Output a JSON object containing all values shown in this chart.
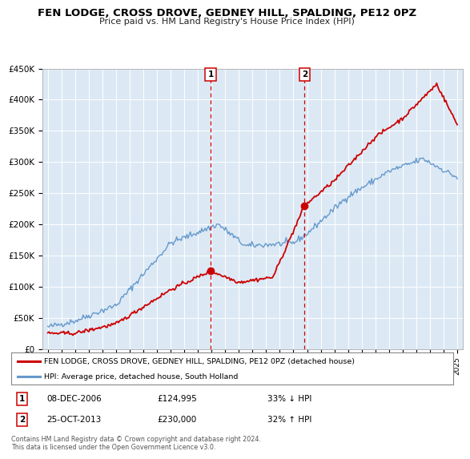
{
  "title": "FEN LODGE, CROSS DROVE, GEDNEY HILL, SPALDING, PE12 0PZ",
  "subtitle": "Price paid vs. HM Land Registry's House Price Index (HPI)",
  "plot_bg_color": "#dce9f5",
  "ylim": [
    0,
    450000
  ],
  "yticks": [
    0,
    50000,
    100000,
    150000,
    200000,
    250000,
    300000,
    350000,
    400000,
    450000
  ],
  "ytick_labels": [
    "£0",
    "£50K",
    "£100K",
    "£150K",
    "£200K",
    "£250K",
    "£300K",
    "£350K",
    "£400K",
    "£450K"
  ],
  "sale1_date_num": 2006.93,
  "sale1_price": 124995,
  "sale2_date_num": 2013.82,
  "sale2_price": 230000,
  "legend_line1": "FEN LODGE, CROSS DROVE, GEDNEY HILL, SPALDING, PE12 0PZ (detached house)",
  "legend_line2": "HPI: Average price, detached house, South Holland",
  "table_row1": [
    "1",
    "08-DEC-2006",
    "£124,995",
    "33% ↓ HPI"
  ],
  "table_row2": [
    "2",
    "25-OCT-2013",
    "£230,000",
    "32% ↑ HPI"
  ],
  "footer": "Contains HM Land Registry data © Crown copyright and database right 2024.\nThis data is licensed under the Open Government Licence v3.0.",
  "line_red": "#cc0000",
  "line_blue": "#6699cc",
  "vline_color": "#cc0000",
  "xlim_left": 1994.6,
  "xlim_right": 2025.4
}
